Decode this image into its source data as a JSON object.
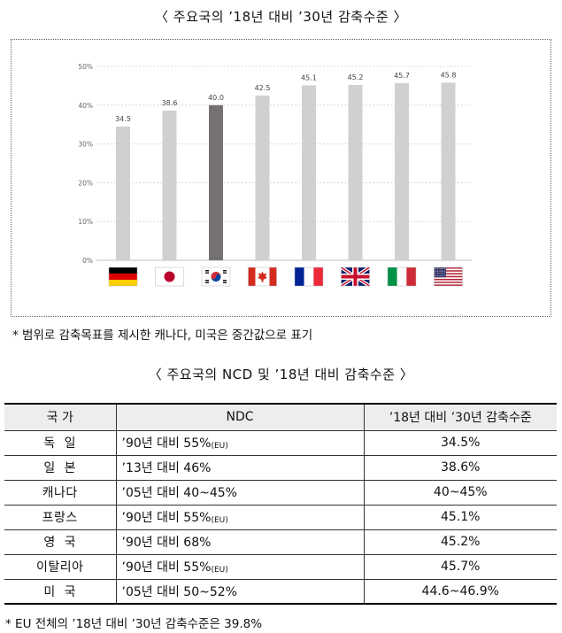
{
  "title_chart": "〈 주요국의 ’18년 대비 ’30년 감축수준 〉",
  "chart_data": {
    "type": "bar",
    "categories": [
      "germany",
      "japan",
      "korea",
      "canada",
      "france",
      "uk",
      "italy",
      "usa"
    ],
    "values": [
      34.5,
      38.6,
      40.0,
      42.5,
      45.1,
      45.2,
      45.7,
      45.8
    ],
    "value_labels": [
      "34.5",
      "38.6",
      "40.0",
      "42.5",
      "45.1",
      "45.2",
      "45.7",
      "45.8"
    ],
    "ylim": [
      0,
      50
    ],
    "y_ticks": [
      "0%",
      "10%",
      "20%",
      "30%",
      "40%",
      "50%"
    ],
    "grid": true,
    "bar_color": "#d0d0d0",
    "highlight_color": "#767171",
    "highlight_index": 2,
    "x_axis": "flag icons",
    "flags": [
      "germany-flag-icon",
      "japan-flag-icon",
      "korea-flag-icon",
      "canada-flag-icon",
      "france-flag-icon",
      "uk-flag-icon",
      "italy-flag-icon",
      "usa-flag-icon"
    ]
  },
  "note_chart": "*  범위로 감축목표를 제시한 캐나다, 미국은 중간값으로 표기",
  "title_table": "〈 주요국의 NCD 및 ’18년 대비 감축수준 〉",
  "table": {
    "headers": [
      "국 가",
      "NDC",
      "’18년 대비 ’30년 감축수준"
    ],
    "rows": [
      {
        "country": "독  일",
        "ndc": "’90년 대비 55%",
        "ndc_sub": "(EU)",
        "level": "34.5%"
      },
      {
        "country": "일  본",
        "ndc": "’13년 대비 46%",
        "ndc_sub": "",
        "level": "38.6%"
      },
      {
        "country": "캐나다",
        "ndc": "’05년 대비 40~45%",
        "ndc_sub": "",
        "level": "40~45%"
      },
      {
        "country": "프랑스",
        "ndc": "’90년 대비 55%",
        "ndc_sub": "(EU)",
        "level": "45.1%"
      },
      {
        "country": "영  국",
        "ndc": "’90년 대비 68%",
        "ndc_sub": "",
        "level": "45.2%"
      },
      {
        "country": "이탈리아",
        "ndc": "’90년 대비 55%",
        "ndc_sub": "(EU)",
        "level": "45.7%"
      },
      {
        "country": "미  국",
        "ndc": "’05년 대비 50~52%",
        "ndc_sub": "",
        "level": "44.6~46.9%"
      }
    ]
  },
  "note_table": "*  EU 전체의 ’18년 대비 ’30년 감축수준은 39.8%"
}
